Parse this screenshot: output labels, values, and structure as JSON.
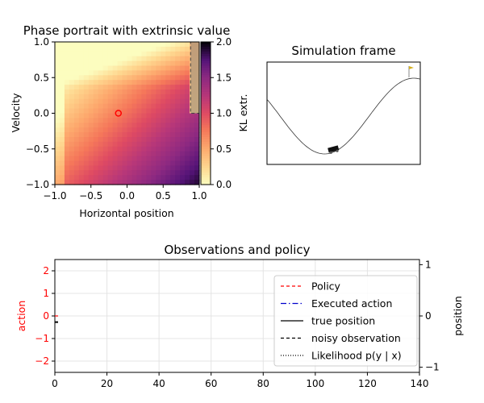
{
  "chart_data": [
    {
      "type": "heatmap",
      "title": "Phase portrait with extrinsic value",
      "xlabel": "Horizontal position",
      "ylabel": "Velocity",
      "xlim": [
        -1.0,
        1.0
      ],
      "ylim": [
        -1.0,
        1.0
      ],
      "x_ticks": [
        "−1.0",
        "−0.5",
        "0.0",
        "0.5",
        "1.0"
      ],
      "y_ticks": [
        "1.0",
        "0.5",
        "0.0",
        "−0.5",
        "−1.0"
      ],
      "x_tick_values": [
        -1.0,
        -0.5,
        0.0,
        0.5,
        1.0
      ],
      "y_tick_values": [
        1.0,
        0.5,
        0.0,
        -0.5,
        -1.0
      ],
      "colormap": "magma_r",
      "colorbar": {
        "label": "KL extr.",
        "ticks": [
          "2.0",
          "1.5",
          "1.0",
          "0.5",
          "0.0"
        ],
        "tick_values": [
          2.0,
          1.5,
          1.0,
          0.5,
          0.0
        ],
        "range": [
          0.0,
          2.0
        ]
      },
      "agent_marker": {
        "x": -0.12,
        "y": 0.0,
        "color": "#ff0000"
      },
      "goal_region": {
        "x": [
          0.88,
          1.0
        ],
        "y": [
          0.0,
          1.0
        ]
      }
    },
    {
      "type": "other",
      "title": "Simulation frame",
      "terrain": "mountain-car valley",
      "car_x": -0.5,
      "goal_x": 0.6
    },
    {
      "type": "line",
      "title": "Observations and policy",
      "ylabel_left": "action",
      "ylabel_right": "position",
      "xlim": [
        0,
        140
      ],
      "ylim_left": [
        -2.5,
        2.5
      ],
      "ylim_right": [
        -1.1,
        1.1
      ],
      "x_ticks": [
        "0",
        "20",
        "40",
        "60",
        "80",
        "100",
        "120",
        "140"
      ],
      "x_tick_values": [
        0,
        20,
        40,
        60,
        80,
        100,
        120,
        140
      ],
      "y_ticks_left": [
        "2",
        "1",
        "0",
        "−1",
        "−2"
      ],
      "y_tick_values_left": [
        2,
        1,
        0,
        -1,
        -2
      ],
      "y_ticks_right": [
        "1",
        "0",
        "−1"
      ],
      "y_tick_values_right": [
        1,
        0,
        -1
      ],
      "grid": true,
      "legend_position": "right",
      "legend": [
        {
          "label": "Policy",
          "color": "#ff0000",
          "dash": "4,3"
        },
        {
          "label": "Executed action",
          "color": "#0000cc",
          "dash": "7,3,1.5,3"
        },
        {
          "label": "true position",
          "color": "#000000",
          "dash": ""
        },
        {
          "label": "noisy observation",
          "color": "#000000",
          "dash": "4,3"
        },
        {
          "label": "Likelihood p(y | x)",
          "color": "#000000",
          "dash": "1,2"
        }
      ],
      "series": [
        {
          "name": "Policy",
          "x": [
            0
          ],
          "y": [
            0.0
          ]
        },
        {
          "name": "true position",
          "x": [
            0
          ],
          "y": [
            -0.12
          ]
        }
      ]
    }
  ]
}
